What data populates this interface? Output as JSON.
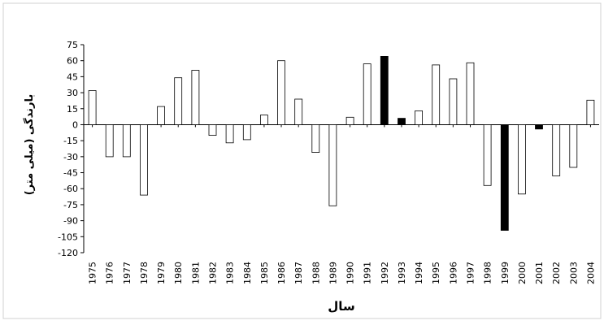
{
  "chart_data": {
    "type": "bar",
    "xlabel": "سال",
    "ylabel": "بارندگی (میلی متر)",
    "ylim": [
      -120,
      75
    ],
    "yticks": [
      75,
      60,
      45,
      30,
      15,
      0,
      -15,
      -30,
      -45,
      -60,
      -75,
      -90,
      -105,
      -120
    ],
    "grid": false,
    "legend": "none",
    "colors": {
      "normal_fill": "#ffffff",
      "highlight_fill": "#000000",
      "stroke": "#000000"
    },
    "categories": [
      "1975",
      "1976",
      "1977",
      "1978",
      "1979",
      "1980",
      "1981",
      "1982",
      "1983",
      "1984",
      "1985",
      "1986",
      "1987",
      "1988",
      "1989",
      "1990",
      "1991",
      "1992",
      "1993",
      "1994",
      "1995",
      "1996",
      "1997",
      "1998",
      "1999",
      "2000",
      "2001",
      "2002",
      "2003",
      "2004"
    ],
    "values": [
      32,
      -30,
      -30,
      -66,
      17,
      44,
      51,
      -10,
      -17,
      -14,
      9,
      60,
      24,
      -26,
      -76,
      7,
      57,
      64,
      6,
      13,
      56,
      43,
      58,
      -57,
      -99,
      -65,
      -4,
      -48,
      -40,
      23
    ],
    "highlighted": [
      "1992",
      "1993",
      "1999",
      "2001"
    ]
  }
}
